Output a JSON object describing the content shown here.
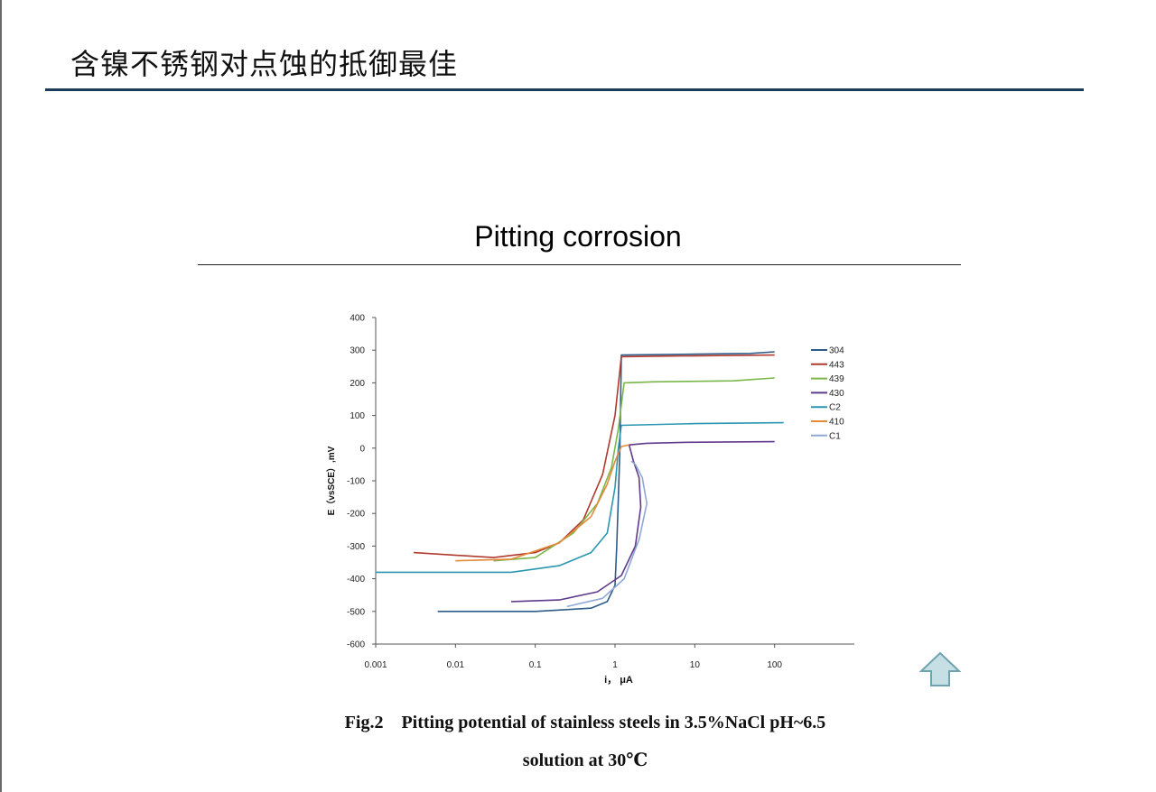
{
  "slide": {
    "title": "含镍不锈钢对点蚀的抵御最佳",
    "heading": "Pitting corrosion",
    "caption_line1": "Fig.2    Pitting potential of stainless steels in 3.5%NaCl pH~6.5",
    "caption_line2": "solution at 30℃",
    "nav_icon": "up-arrow-icon",
    "colors": {
      "title_rule": "#1f3b5a",
      "arrow_fill": "#c5dfe5",
      "arrow_stroke": "#6fa3b0"
    }
  },
  "chart_data": {
    "type": "line",
    "x_scale": "log",
    "xlabel": "i， μA",
    "ylabel": "E（vsSCE）,mV",
    "xlim": [
      0.001,
      1000
    ],
    "ylim": [
      -600,
      400
    ],
    "x_ticks": [
      "0.001",
      "0.01",
      "0.1",
      "1",
      "10",
      "100"
    ],
    "y_ticks": [
      "400",
      "300",
      "200",
      "100",
      "0",
      "-100",
      "-200",
      "-300",
      "-400",
      "-500",
      "-600"
    ],
    "legend_position": "right",
    "series": [
      {
        "name": "304",
        "color": "#2e5c8a",
        "x": [
          0.006,
          0.1,
          0.5,
          0.8,
          1.0,
          1.05,
          1.1,
          1.15,
          1.2,
          5,
          50,
          100
        ],
        "y": [
          -500,
          -500,
          -490,
          -470,
          -420,
          -300,
          -150,
          0,
          285,
          287,
          290,
          295
        ]
      },
      {
        "name": "443",
        "color": "#b03a2e",
        "x": [
          0.003,
          0.03,
          0.1,
          0.2,
          0.4,
          0.7,
          1.0,
          1.2,
          5,
          100
        ],
        "y": [
          -320,
          -335,
          -320,
          -290,
          -220,
          -80,
          100,
          280,
          282,
          285
        ]
      },
      {
        "name": "439",
        "color": "#7ab648",
        "x": [
          0.03,
          0.1,
          0.3,
          0.6,
          0.9,
          1.1,
          1.3,
          3,
          30,
          100
        ],
        "y": [
          -345,
          -335,
          -260,
          -170,
          -60,
          60,
          200,
          203,
          206,
          215
        ]
      },
      {
        "name": "430",
        "color": "#5e3a8c",
        "x": [
          0.05,
          0.2,
          0.6,
          1.2,
          1.8,
          2.1,
          2.0,
          1.7,
          1.5,
          2.5,
          8,
          100
        ],
        "y": [
          -470,
          -465,
          -440,
          -390,
          -300,
          -180,
          -90,
          -40,
          10,
          15,
          18,
          20
        ]
      },
      {
        "name": "C2",
        "color": "#2a96b0",
        "x": [
          0.001,
          0.05,
          0.2,
          0.5,
          0.8,
          1.0,
          1.1,
          1.2,
          10,
          130
        ],
        "y": [
          -380,
          -380,
          -360,
          -320,
          -260,
          -120,
          0,
          70,
          75,
          78
        ]
      },
      {
        "name": "410",
        "color": "#e48a3a",
        "x": [
          0.01,
          0.05,
          0.2,
          0.5,
          0.8,
          1.0,
          1.2,
          1.5
        ],
        "y": [
          -345,
          -340,
          -290,
          -210,
          -110,
          -40,
          5,
          10
        ]
      },
      {
        "name": "C1",
        "color": "#8fa8d6",
        "x": [
          0.25,
          0.7,
          1.3,
          2.0,
          2.5,
          2.2,
          1.8,
          1.6
        ],
        "y": [
          -485,
          -460,
          -400,
          -280,
          -170,
          -90,
          -50,
          -40
        ]
      }
    ]
  }
}
